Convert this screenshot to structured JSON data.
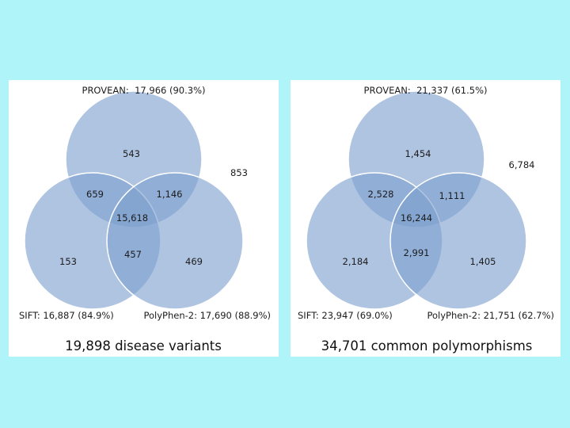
{
  "colors": {
    "background": "#aef4f9",
    "panel": "#ffffff",
    "circle_fill": "#7e9fcf",
    "circle_stroke": "#ffffff"
  },
  "panels": [
    {
      "provean_label": "PROVEAN:",
      "provean_value": "17,966 (90.3%)",
      "sift_label": "SIFT: 16,887 (84.9%)",
      "polyphen_label": "PolyPhen-2: 17,690 (88.9%)",
      "caption": "19,898 disease variants",
      "counts": {
        "provean_only": "543",
        "sift_only": "153",
        "polyphen_only": "469",
        "provean_sift": "659",
        "provean_polyphen": "1,146",
        "sift_polyphen": "457",
        "all_three": "15,618",
        "none": "853"
      }
    },
    {
      "provean_label": "PROVEAN:",
      "provean_value": "21,337 (61.5%)",
      "sift_label": "SIFT: 23,947 (69.0%)",
      "polyphen_label": "PolyPhen-2: 21,751 (62.7%)",
      "caption": "34,701 common polymorphisms",
      "counts": {
        "provean_only": "1,454",
        "sift_only": "2,184",
        "polyphen_only": "1,405",
        "provean_sift": "2,528",
        "provean_polyphen": "1,111",
        "sift_polyphen": "2,991",
        "all_three": "16,244",
        "none": "6,784"
      }
    }
  ]
}
